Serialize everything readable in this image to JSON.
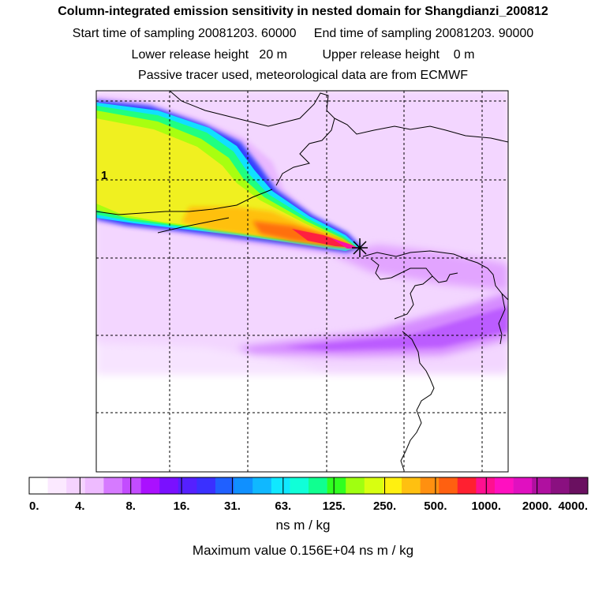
{
  "header": {
    "title": "Column-integrated emission sensitivity in nested domain for Shangdianzi_200812",
    "line2": "Start time of sampling 20081203. 60000     End time of sampling 20081203. 90000",
    "line3": "Lower release height   20 m          Upper release height    0 m",
    "line4": "Passive tracer used, meteorological data are from ECMWF"
  },
  "map": {
    "contour_label": "1",
    "release_marker": "release-site-star"
  },
  "colorbar": {
    "tick_labels": [
      "0.",
      "4.",
      "8.",
      "16.",
      "31.",
      "63.",
      "125.",
      "250.",
      "500.",
      "1000.",
      "2000.",
      "4000."
    ],
    "colors": [
      "#ffffff",
      "#fbe9ff",
      "#f5d3ff",
      "#eebbff",
      "#d67aff",
      "#c34cff",
      "#aa10ff",
      "#7a10ff",
      "#5520ff",
      "#3a30ff",
      "#2060ff",
      "#1090ff",
      "#10b8ff",
      "#10e8ff",
      "#10ffd8",
      "#10ff90",
      "#30ff20",
      "#a0ff10",
      "#d8ff10",
      "#fff010",
      "#ffc010",
      "#ff9010",
      "#ff6010",
      "#ff2030",
      "#ff1090",
      "#ff10c0",
      "#e010c0",
      "#b010a0",
      "#8a1080",
      "#6a1060"
    ],
    "units": "ns m / kg"
  },
  "footer": {
    "maximum": "Maximum value  0.156E+04 ns m / kg"
  }
}
